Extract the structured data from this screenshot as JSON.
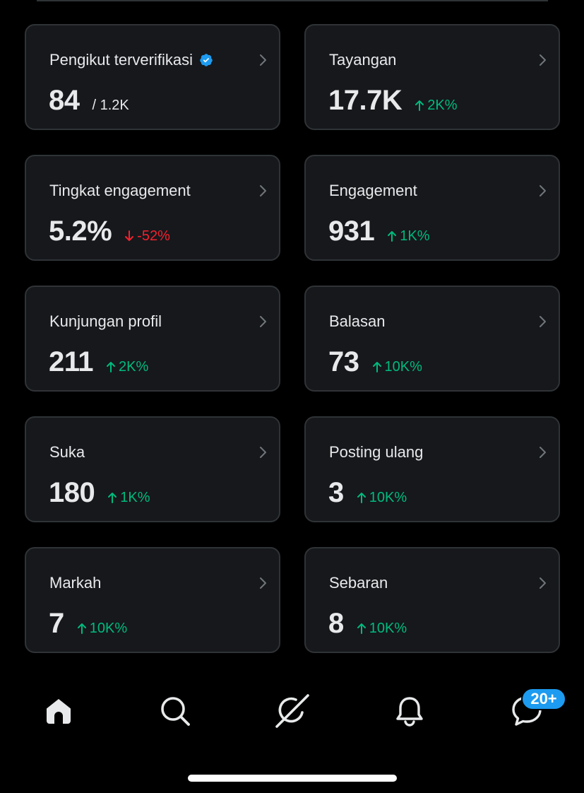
{
  "colors": {
    "background": "#000000",
    "card_background": "#16181c",
    "card_border": "#2f3336",
    "text_primary": "#e7e9ea",
    "positive": "#00ba7c",
    "negative": "#f4212e",
    "accent": "#1d9bf0"
  },
  "metrics": [
    {
      "label": "Pengikut terverifikasi",
      "value": "84",
      "sub": "/ 1.2K",
      "change": "",
      "direction": "",
      "verified_icon": true
    },
    {
      "label": "Tayangan",
      "value": "17.7K",
      "sub": "",
      "change": "2K%",
      "direction": "up"
    },
    {
      "label": "Tingkat engagement",
      "value": "5.2%",
      "sub": "",
      "change": "-52%",
      "direction": "down"
    },
    {
      "label": "Engagement",
      "value": "931",
      "sub": "",
      "change": "1K%",
      "direction": "up"
    },
    {
      "label": "Kunjungan profil",
      "value": "211",
      "sub": "",
      "change": "2K%",
      "direction": "up"
    },
    {
      "label": "Balasan",
      "value": "73",
      "sub": "",
      "change": "10K%",
      "direction": "up"
    },
    {
      "label": "Suka",
      "value": "180",
      "sub": "",
      "change": "1K%",
      "direction": "up"
    },
    {
      "label": "Posting ulang",
      "value": "3",
      "sub": "",
      "change": "10K%",
      "direction": "up"
    },
    {
      "label": "Markah",
      "value": "7",
      "sub": "",
      "change": "10K%",
      "direction": "up"
    },
    {
      "label": "Sebaran",
      "value": "8",
      "sub": "",
      "change": "10K%",
      "direction": "up"
    }
  ],
  "bottom_nav": {
    "items": [
      {
        "icon": "home-icon",
        "active": true
      },
      {
        "icon": "search-icon",
        "active": false
      },
      {
        "icon": "grok-icon",
        "active": false
      },
      {
        "icon": "bell-icon",
        "active": false
      },
      {
        "icon": "messages-icon",
        "active": false
      }
    ],
    "messages_badge": "20+"
  }
}
